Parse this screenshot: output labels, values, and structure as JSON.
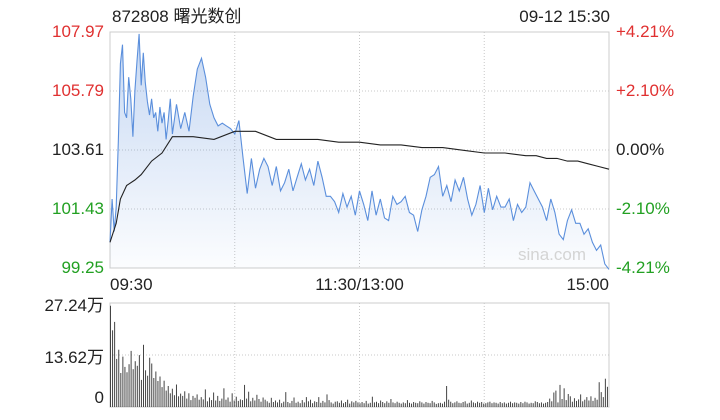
{
  "header": {
    "code_name": "872808 曙光数创",
    "datetime": "09-12 15:30"
  },
  "watermark": "sina.com",
  "colors": {
    "up": "#e03030",
    "down": "#22a022",
    "flat": "#222222",
    "price_line": "#5b8fdc",
    "avg_line": "#222222",
    "volume": "#444444"
  },
  "chart_data": [
    {
      "type": "line",
      "title": "",
      "prev_close": 103.61,
      "ylim": [
        99.25,
        107.97
      ],
      "y_ticks_left": [
        "107.97",
        "105.79",
        "103.61",
        "101.43",
        "99.25"
      ],
      "y_ticks_right": [
        "+4.21%",
        "+2.10%",
        "0.00%",
        "-2.10%",
        "-4.21%"
      ],
      "x_ticks": [
        "09:30",
        "11:30/13:00",
        "15:00"
      ],
      "session_minutes": 240,
      "series": [
        {
          "role": "price",
          "x": [
            0,
            1,
            2,
            3,
            4,
            5,
            6,
            7,
            8,
            9,
            10,
            11,
            12,
            13,
            14,
            15,
            16,
            17,
            18,
            19,
            20,
            21,
            22,
            23,
            24,
            25,
            26,
            27,
            28,
            29,
            30,
            32,
            34,
            36,
            38,
            40,
            42,
            44,
            46,
            48,
            50,
            52,
            54,
            56,
            58,
            60,
            62,
            64,
            66,
            68,
            70,
            72,
            74,
            76,
            78,
            80,
            82,
            84,
            86,
            88,
            90,
            92,
            94,
            96,
            98,
            100,
            102,
            104,
            106,
            108,
            110,
            112,
            114,
            116,
            118,
            120,
            122,
            124,
            126,
            128,
            130,
            132,
            134,
            136,
            138,
            140,
            142,
            144,
            146,
            148,
            150,
            152,
            154,
            156,
            158,
            160,
            162,
            164,
            166,
            168,
            170,
            172,
            174,
            176,
            178,
            180,
            182,
            184,
            186,
            188,
            190,
            192,
            194,
            196,
            198,
            200,
            202,
            204,
            206,
            208,
            210,
            212,
            214,
            216,
            218,
            220,
            222,
            224,
            226,
            228,
            230,
            232,
            234,
            236,
            238,
            240
          ],
          "values": [
            100.2,
            101.8,
            100.6,
            101.5,
            103.9,
            106.8,
            107.5,
            105.0,
            104.8,
            106.3,
            105.5,
            104.1,
            105.8,
            106.9,
            107.9,
            106.0,
            107.2,
            106.1,
            105.4,
            104.9,
            105.5,
            104.8,
            105.0,
            104.3,
            105.2,
            104.6,
            105.0,
            104.0,
            104.7,
            105.5,
            104.2,
            105.3,
            104.4,
            105.0,
            104.3,
            105.6,
            106.6,
            107.0,
            106.3,
            105.3,
            104.8,
            104.5,
            104.6,
            104.5,
            104.4,
            104.2,
            104.7,
            103.3,
            102.0,
            103.3,
            102.2,
            102.9,
            103.3,
            103.0,
            102.3,
            103.0,
            102.1,
            102.4,
            102.9,
            102.1,
            102.6,
            103.1,
            102.5,
            102.9,
            102.3,
            103.2,
            102.6,
            101.9,
            101.9,
            101.7,
            101.3,
            102.0,
            101.5,
            101.9,
            101.2,
            102.1,
            101.6,
            101.0,
            102.1,
            101.2,
            101.8,
            101.1,
            101.0,
            101.9,
            101.6,
            101.7,
            101.9,
            101.3,
            101.2,
            100.6,
            101.4,
            101.9,
            102.6,
            102.7,
            103.0,
            101.9,
            102.3,
            101.7,
            102.5,
            102.1,
            102.6,
            101.8,
            101.2,
            101.6,
            102.3,
            101.3,
            102.2,
            101.4,
            101.9,
            101.5,
            101.5,
            101.8,
            101.0,
            101.6,
            101.3,
            101.5,
            102.4,
            102.1,
            101.8,
            101.5,
            101.0,
            101.8,
            101.3,
            100.5,
            100.3,
            101.0,
            101.4,
            100.9,
            100.9,
            100.5,
            100.7,
            100.2,
            99.9,
            100.1,
            99.4,
            99.2
          ]
        },
        {
          "role": "average",
          "x": [
            0,
            3,
            5,
            8,
            12,
            15,
            20,
            25,
            30,
            40,
            50,
            60,
            70,
            80,
            90,
            100,
            110,
            120,
            130,
            140,
            150,
            160,
            170,
            180,
            190,
            200,
            205,
            210,
            215,
            220,
            225,
            230,
            235,
            240
          ],
          "values": [
            100.2,
            100.9,
            101.8,
            102.3,
            102.5,
            102.7,
            103.2,
            103.5,
            104.1,
            104.1,
            104.0,
            104.3,
            104.3,
            104.0,
            104.0,
            104.0,
            103.9,
            103.9,
            103.8,
            103.8,
            103.7,
            103.7,
            103.6,
            103.5,
            103.5,
            103.4,
            103.4,
            103.3,
            103.3,
            103.2,
            103.2,
            103.1,
            103.0,
            102.9
          ]
        }
      ]
    },
    {
      "type": "bar",
      "title": "",
      "ylim": [
        0,
        27.24
      ],
      "y_ticks": [
        "27.24万",
        "13.62万",
        "0"
      ],
      "values": [
        26.5,
        20.1,
        22.3,
        12.6,
        15.0,
        8.9,
        13.2,
        10.5,
        9.1,
        11.2,
        14.7,
        9.9,
        12.0,
        10.8,
        13.6,
        7.1,
        16.3,
        9.6,
        8.2,
        12.9,
        11.4,
        7.6,
        9.3,
        6.8,
        8.0,
        5.2,
        6.9,
        4.3,
        5.5,
        3.6,
        4.8,
        3.1,
        5.9,
        2.8,
        3.5,
        2.9,
        4.1,
        2.2,
        3.6,
        1.8,
        2.9,
        2.4,
        3.3,
        1.9,
        2.6,
        2.0,
        4.6,
        1.5,
        2.5,
        1.8,
        3.8,
        1.7,
        2.9,
        1.6,
        2.2,
        4.9,
        1.9,
        2.5,
        1.4,
        3.6,
        1.7,
        2.7,
        1.6,
        2.0,
        1.8,
        5.8,
        2.2,
        4.0,
        1.5,
        2.4,
        1.7,
        3.2,
        2.1,
        1.4,
        2.5,
        1.9,
        1.5,
        1.1,
        2.4,
        1.3,
        1.7,
        1.2,
        1.9,
        1.0,
        1.4,
        3.9,
        1.3,
        1.0,
        1.6,
        2.5,
        1.1,
        1.4,
        1.0,
        1.8,
        1.2,
        2.6,
        1.5,
        1.9,
        1.0,
        1.5,
        1.3,
        2.6,
        1.1,
        1.6,
        1.2,
        3.3,
        1.8,
        1.2,
        0.9,
        1.4,
        1.5,
        1.1,
        1.7,
        1.0,
        1.3,
        1.9,
        0.9,
        1.5,
        1.2,
        1.6,
        1.2,
        1.0,
        1.3,
        1.0,
        1.6,
        0.9,
        1.1,
        2.7,
        1.2,
        1.4,
        1.0,
        1.7,
        1.3,
        1.0,
        1.5,
        1.1,
        2.1,
        1.2,
        1.0,
        1.4,
        1.1,
        0.9,
        1.2,
        1.0,
        1.8,
        1.1,
        0.9,
        1.3,
        1.1,
        1.0,
        1.5,
        1.2,
        0.9,
        1.3,
        1.1,
        1.0,
        1.6,
        1.2,
        0.8,
        1.0,
        1.1,
        0.9,
        1.4,
        5.5,
        1.9,
        1.4,
        1.0,
        1.2,
        1.5,
        1.1,
        1.0,
        1.3,
        1.5,
        0.9,
        1.1,
        1.7,
        1.2,
        1.0,
        1.4,
        1.1,
        1.3,
        0.9,
        1.0,
        1.2,
        1.4,
        1.0,
        1.2,
        1.1,
        0.9,
        1.3,
        1.0,
        1.2,
        0.9,
        1.1,
        1.4,
        1.0,
        1.2,
        1.1,
        0.9,
        1.3,
        1.0,
        1.4,
        1.2,
        0.9,
        1.1,
        1.0,
        1.5,
        1.3,
        1.0,
        1.2,
        0.9,
        1.1,
        1.3,
        2.2,
        1.5,
        3.8,
        4.3,
        1.2,
        5.8,
        2.1,
        4.9,
        1.8,
        3.4,
        2.8,
        1.4,
        2.3,
        1.6,
        2.0,
        3.3,
        1.5,
        1.9,
        2.6,
        1.7,
        2.8,
        1.6,
        2.4,
        1.9,
        6.5,
        3.9,
        2.6,
        7.4,
        5.3
      ]
    }
  ]
}
